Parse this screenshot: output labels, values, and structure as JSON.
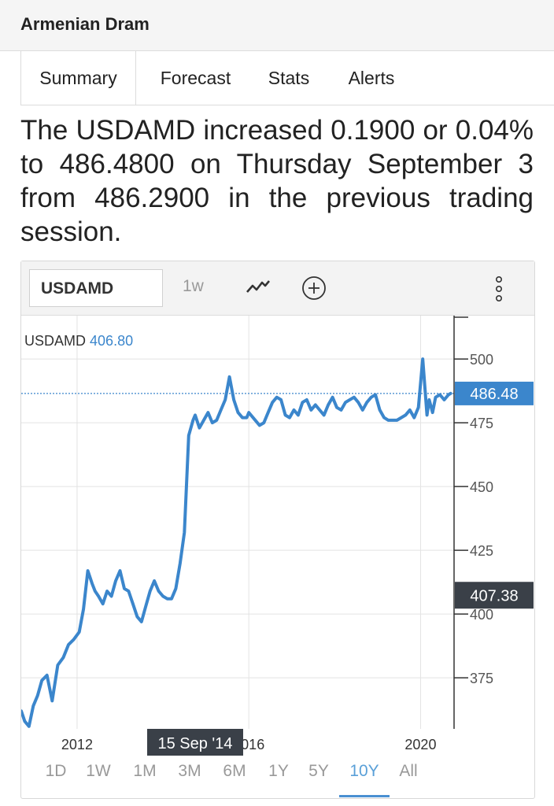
{
  "header": {
    "title": "Armenian Dram"
  },
  "tabs": [
    {
      "label": "Summary",
      "active": true
    },
    {
      "label": "Forecast",
      "active": false
    },
    {
      "label": "Stats",
      "active": false
    },
    {
      "label": "Alerts",
      "active": false
    }
  ],
  "summary_text": "The USDAMD increased 0.1900 or 0.04% to 486.4800 on Thursday September 3 from 486.2900 in the previous trading session.",
  "toolbar": {
    "symbol": "USDAMD",
    "interval": "1w",
    "icons": [
      "line-chart-icon",
      "add-circle-icon",
      "more-vertical-icon"
    ]
  },
  "legend": {
    "symbol": "USDAMD",
    "value": "406.80"
  },
  "price_label": "486.48",
  "crosshair_label": "407.38",
  "date_tooltip": "15 Sep '14",
  "range_buttons": [
    "1D",
    "1W",
    "1M",
    "3M",
    "6M",
    "1Y",
    "5Y",
    "10Y",
    "All"
  ],
  "active_range": "10Y",
  "colors": {
    "line": "#3b86cc",
    "price_tag": "#3b86cc",
    "crosshair_tag": "#3a4048"
  },
  "chart_data": {
    "type": "line",
    "title": "",
    "xlabel": "",
    "ylabel": "",
    "series": [
      {
        "name": "USDAMD",
        "x": [
          2010.7,
          2010.78,
          2010.88,
          2010.98,
          2011.08,
          2011.18,
          2011.3,
          2011.42,
          2011.55,
          2011.68,
          2011.8,
          2011.92,
          2012.05,
          2012.15,
          2012.25,
          2012.35,
          2012.42,
          2012.5,
          2012.6,
          2012.7,
          2012.8,
          2012.9,
          2013.0,
          2013.1,
          2013.2,
          2013.3,
          2013.4,
          2013.5,
          2013.6,
          2013.7,
          2013.8,
          2013.9,
          2014.0,
          2014.1,
          2014.2,
          2014.3,
          2014.4,
          2014.5,
          2014.6,
          2014.7,
          2014.75,
          2014.85,
          2014.95,
          2015.05,
          2015.15,
          2015.25,
          2015.35,
          2015.45,
          2015.55,
          2015.65,
          2015.75,
          2015.85,
          2015.95,
          2016.0,
          2016.05,
          2016.15,
          2016.25,
          2016.35,
          2016.45,
          2016.55,
          2016.65,
          2016.75,
          2016.85,
          2016.95,
          2017.05,
          2017.15,
          2017.25,
          2017.35,
          2017.45,
          2017.55,
          2017.65,
          2017.75,
          2017.85,
          2017.95,
          2018.05,
          2018.15,
          2018.25,
          2018.35,
          2018.45,
          2018.55,
          2018.65,
          2018.75,
          2018.85,
          2018.95,
          2019.05,
          2019.15,
          2019.25,
          2019.35,
          2019.45,
          2019.55,
          2019.65,
          2019.75,
          2019.85,
          2019.95,
          2020.05,
          2020.15,
          2020.2,
          2020.28,
          2020.35,
          2020.45,
          2020.55,
          2020.65,
          2020.7
        ],
        "y": [
          362,
          358,
          356,
          364,
          368,
          374,
          376,
          366,
          380,
          383,
          388,
          390,
          393,
          402,
          417,
          412,
          409,
          407,
          404,
          409,
          407,
          413,
          417,
          410,
          409,
          404,
          399,
          397,
          403,
          409,
          413,
          409,
          407,
          406,
          406,
          410,
          420,
          432,
          470,
          476,
          478,
          473,
          476,
          479,
          475,
          476,
          480,
          484,
          493,
          484,
          479,
          477,
          477,
          479,
          478,
          476,
          474,
          475,
          479,
          483,
          485,
          484,
          478,
          477,
          480,
          478,
          483,
          484,
          480,
          482,
          480,
          478,
          482,
          485,
          481,
          480,
          483,
          484,
          485,
          483,
          480,
          483,
          485,
          486,
          480,
          477,
          476,
          476,
          476,
          477,
          478,
          480,
          477,
          481,
          500,
          478,
          484,
          479,
          485,
          486,
          484,
          486,
          486.48
        ]
      }
    ],
    "xlim": [
      2010.7,
      2020.78
    ],
    "ylim": [
      355,
      517
    ],
    "yticks": [
      375,
      400,
      425,
      450,
      475,
      500
    ],
    "xticks": [
      {
        "value": 2012,
        "label": "2012"
      },
      {
        "value": 2016,
        "label": "2016"
      },
      {
        "value": 2020,
        "label": "2020"
      }
    ],
    "last_value": 486.48,
    "crosshair_value": 407.38,
    "grid": true,
    "legend": "top-left"
  }
}
